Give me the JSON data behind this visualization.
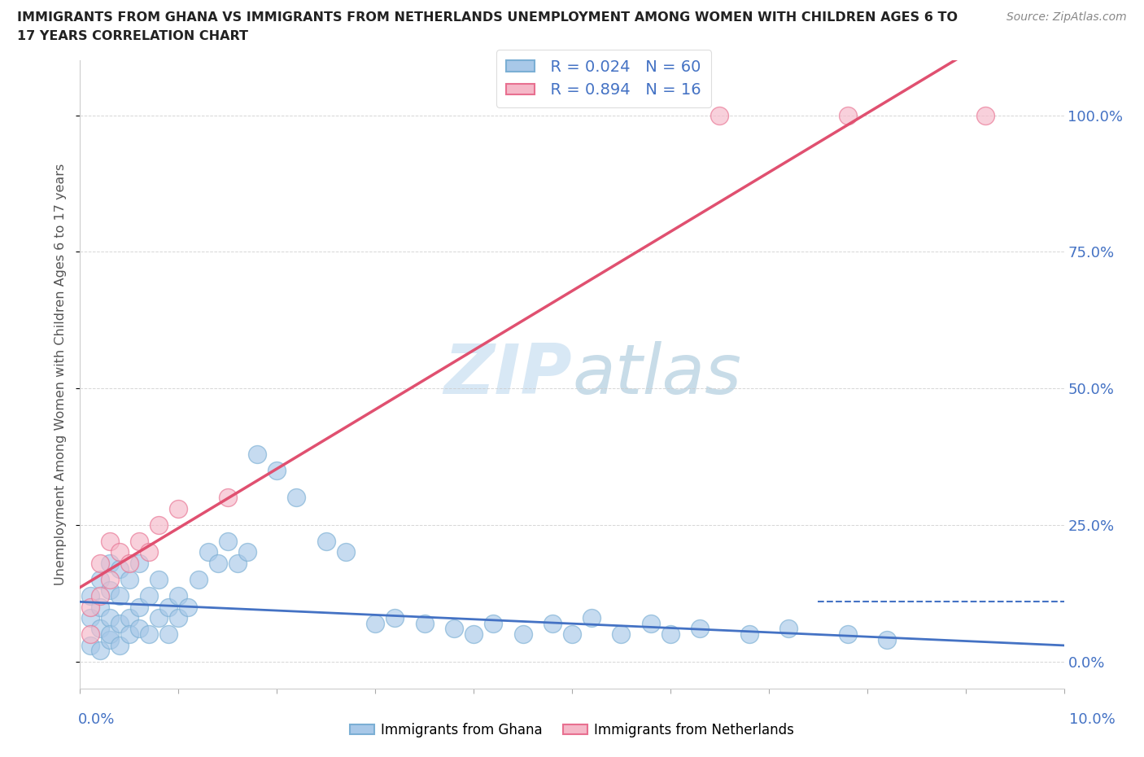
{
  "title_line1": "IMMIGRANTS FROM GHANA VS IMMIGRANTS FROM NETHERLANDS UNEMPLOYMENT AMONG WOMEN WITH CHILDREN AGES 6 TO",
  "title_line2": "17 YEARS CORRELATION CHART",
  "source": "Source: ZipAtlas.com",
  "ylabel": "Unemployment Among Women with Children Ages 6 to 17 years",
  "ytick_labels": [
    "0.0%",
    "25.0%",
    "50.0%",
    "75.0%",
    "100.0%"
  ],
  "ytick_values": [
    0.0,
    0.25,
    0.5,
    0.75,
    1.0
  ],
  "xlim": [
    0,
    0.1
  ],
  "ylim": [
    -0.05,
    1.1
  ],
  "ghana_R": 0.024,
  "ghana_N": 60,
  "netherlands_R": 0.894,
  "netherlands_N": 16,
  "ghana_color_edge": "#7bafd4",
  "ghana_color_fill": "#a8c8e8",
  "netherlands_color_edge": "#e87090",
  "netherlands_color_fill": "#f5b8c8",
  "trendline_ghana_color": "#4472c4",
  "trendline_netherlands_color": "#e05070",
  "background_color": "#ffffff",
  "watermark_color": "#d8e8f5",
  "ghana_x": [
    0.001,
    0.001,
    0.001,
    0.002,
    0.002,
    0.002,
    0.002,
    0.002,
    0.003,
    0.003,
    0.003,
    0.003,
    0.003,
    0.004,
    0.004,
    0.004,
    0.005,
    0.005,
    0.005,
    0.006,
    0.006,
    0.007,
    0.007,
    0.007,
    0.008,
    0.008,
    0.009,
    0.009,
    0.01,
    0.01,
    0.011,
    0.012,
    0.012,
    0.013,
    0.014,
    0.015,
    0.016,
    0.017,
    0.018,
    0.019,
    0.02,
    0.021,
    0.022,
    0.025,
    0.026,
    0.027,
    0.028,
    0.03,
    0.032,
    0.033,
    0.035,
    0.036,
    0.038,
    0.04,
    0.042,
    0.045,
    0.048,
    0.05,
    0.052,
    0.07
  ],
  "ghana_y": [
    0.02,
    0.03,
    0.05,
    0.01,
    0.03,
    0.06,
    0.08,
    0.1,
    0.02,
    0.05,
    0.07,
    0.1,
    0.13,
    0.03,
    0.08,
    0.12,
    0.05,
    0.1,
    0.15,
    0.08,
    0.15,
    0.05,
    0.1,
    0.18,
    0.07,
    0.15,
    0.1,
    0.18,
    0.08,
    0.15,
    0.12,
    0.05,
    0.18,
    0.1,
    0.15,
    0.2,
    0.18,
    0.15,
    0.2,
    0.18,
    0.2,
    0.15,
    0.18,
    0.35,
    0.2,
    0.3,
    0.22,
    0.05,
    0.08,
    0.05,
    0.07,
    0.05,
    0.07,
    0.03,
    0.05,
    0.03,
    0.05,
    0.03,
    0.05,
    0.22
  ],
  "netherlands_x": [
    0.001,
    0.001,
    0.001,
    0.002,
    0.002,
    0.002,
    0.003,
    0.003,
    0.004,
    0.004,
    0.005,
    0.006,
    0.007,
    0.008,
    0.009,
    0.015
  ],
  "netherlands_y": [
    0.02,
    0.05,
    0.08,
    0.1,
    0.15,
    0.2,
    0.15,
    0.22,
    0.18,
    0.25,
    0.2,
    0.25,
    0.2,
    0.28,
    0.3,
    1.0
  ]
}
